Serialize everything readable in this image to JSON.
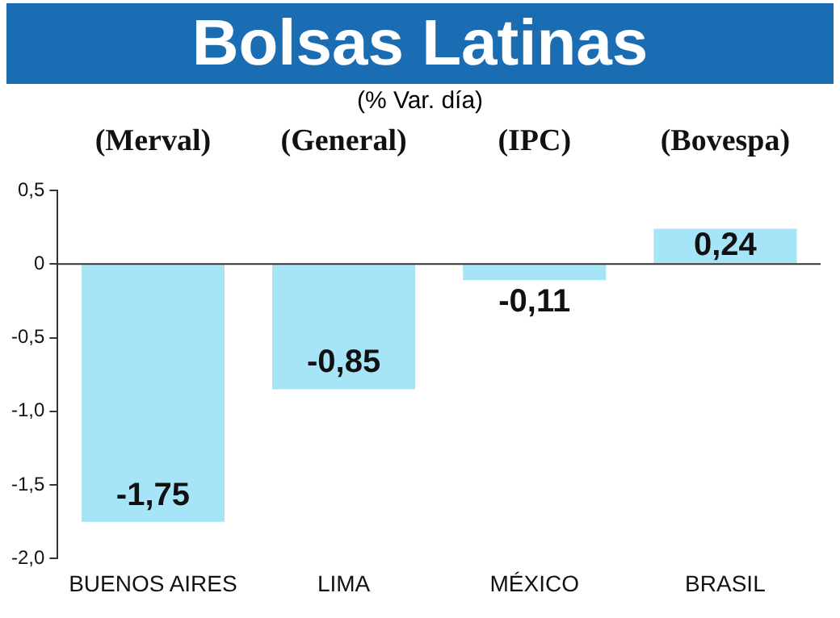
{
  "chart_data": {
    "type": "bar",
    "title": "Bolsas Latinas",
    "subtitle": "(% Var. día)",
    "categories": [
      "BUENOS AIRES",
      "LIMA",
      "MÉXICO",
      "BRASIL"
    ],
    "values": [
      -1.75,
      -0.85,
      -0.11,
      0.24
    ],
    "value_labels": [
      "-1,75",
      "-0,85",
      "-0,11",
      "0,24"
    ],
    "color": "#a6e4f7",
    "ylim": [
      -2,
      0.5
    ],
    "yticks": [
      {
        "value": 0.5,
        "label": "0,5"
      },
      {
        "value": 0,
        "label": "0"
      },
      {
        "value": -0.5,
        "label": "-0,5"
      },
      {
        "value": -1,
        "label": "-1,0"
      },
      {
        "value": -1.5,
        "label": "-1,5"
      },
      {
        "value": -2,
        "label": "-2,0"
      }
    ],
    "legend": false,
    "annotations": [
      "(Merval)",
      "(General)",
      "(IPC)",
      "(Bovespa)"
    ]
  }
}
